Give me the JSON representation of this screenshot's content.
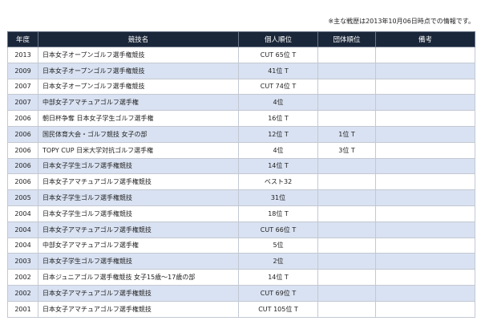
{
  "note": "※主な戦歴は2013年10月06日時点での情報です。",
  "table": {
    "headers": {
      "year": "年度",
      "competition": "競技名",
      "individual": "個人順位",
      "team": "団体順位",
      "remarks": "備考"
    },
    "rows": [
      {
        "year": "2013",
        "competition": "日本女子オープンゴルフ選手権競技",
        "individual": "CUT 65位 T",
        "team": "",
        "remarks": ""
      },
      {
        "year": "2009",
        "competition": "日本女子オープンゴルフ選手権競技",
        "individual": "41位 T",
        "team": "",
        "remarks": ""
      },
      {
        "year": "2007",
        "competition": "日本女子オープンゴルフ選手権競技",
        "individual": "CUT 74位 T",
        "team": "",
        "remarks": ""
      },
      {
        "year": "2007",
        "competition": "中部女子アマチュアゴルフ選手権",
        "individual": "4位",
        "team": "",
        "remarks": ""
      },
      {
        "year": "2006",
        "competition": "朝日杯争奪 日本女子学生ゴルフ選手権",
        "individual": "16位 T",
        "team": "",
        "remarks": ""
      },
      {
        "year": "2006",
        "competition": "国民体育大会・ゴルフ競技 女子の部",
        "individual": "12位 T",
        "team": "1位 T",
        "remarks": ""
      },
      {
        "year": "2006",
        "competition": "TOPY CUP 日米大学対抗ゴルフ選手権",
        "individual": "4位",
        "team": "3位 T",
        "remarks": ""
      },
      {
        "year": "2006",
        "competition": "日本女子学生ゴルフ選手権競技",
        "individual": "14位 T",
        "team": "",
        "remarks": ""
      },
      {
        "year": "2006",
        "competition": "日本女子アマチュアゴルフ選手権競技",
        "individual": "ベスト32",
        "team": "",
        "remarks": ""
      },
      {
        "year": "2005",
        "competition": "日本女子学生ゴルフ選手権競技",
        "individual": "31位",
        "team": "",
        "remarks": ""
      },
      {
        "year": "2004",
        "competition": "日本女子学生ゴルフ選手権競技",
        "individual": "18位 T",
        "team": "",
        "remarks": ""
      },
      {
        "year": "2004",
        "competition": "日本女子アマチュアゴルフ選手権競技",
        "individual": "CUT 66位 T",
        "team": "",
        "remarks": ""
      },
      {
        "year": "2004",
        "competition": "中部女子アマチュアゴルフ選手権",
        "individual": "5位",
        "team": "",
        "remarks": ""
      },
      {
        "year": "2003",
        "competition": "日本女子学生ゴルフ選手権競技",
        "individual": "2位",
        "team": "",
        "remarks": ""
      },
      {
        "year": "2002",
        "competition": "日本ジュニアゴルフ選手権競技 女子15歳～17歳の部",
        "individual": "14位 T",
        "team": "",
        "remarks": ""
      },
      {
        "year": "2002",
        "competition": "日本女子アマチュアゴルフ選手権競技",
        "individual": "CUT 69位 T",
        "team": "",
        "remarks": ""
      },
      {
        "year": "2001",
        "competition": "日本女子アマチュアゴルフ選手権競技",
        "individual": "CUT 105位 T",
        "team": "",
        "remarks": ""
      }
    ]
  }
}
